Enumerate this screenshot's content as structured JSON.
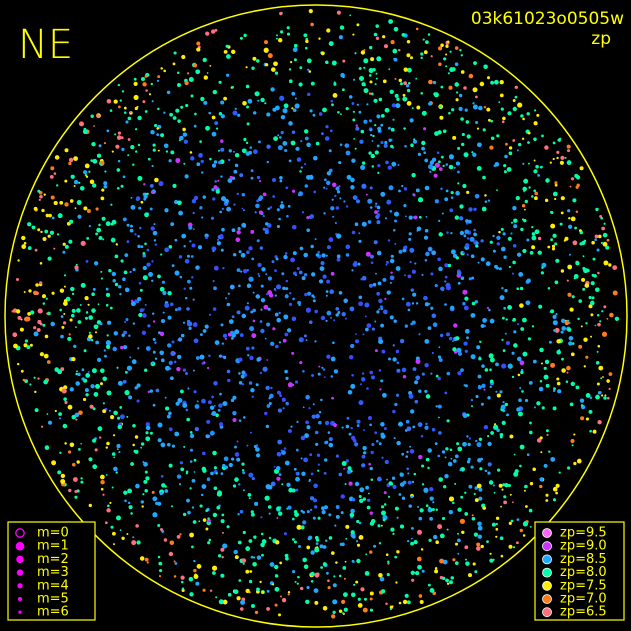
{
  "header": {
    "quadrant": "NE",
    "image_id": "03k61023o0505w",
    "metric": "zp"
  },
  "magnitude_legend": {
    "color": "#ff00ff",
    "items": [
      "m=0",
      "m=1",
      "m=2",
      "m=3",
      "m=4",
      "m=5",
      "m=6"
    ]
  },
  "zp_legend": {
    "items": [
      {
        "label": "zp=9.5",
        "color": "#ff66ff"
      },
      {
        "label": "zp=9.0",
        "color": "#cc33ff"
      },
      {
        "label": "zp=8.5",
        "color": "#1fa8ff"
      },
      {
        "label": "zp=8.0",
        "color": "#00ffaa"
      },
      {
        "label": "zp=7.5",
        "color": "#ffee00"
      },
      {
        "label": "zp=7.0",
        "color": "#ff7a1a"
      },
      {
        "label": "zp=6.5",
        "color": "#ff6f7f"
      }
    ]
  }
}
